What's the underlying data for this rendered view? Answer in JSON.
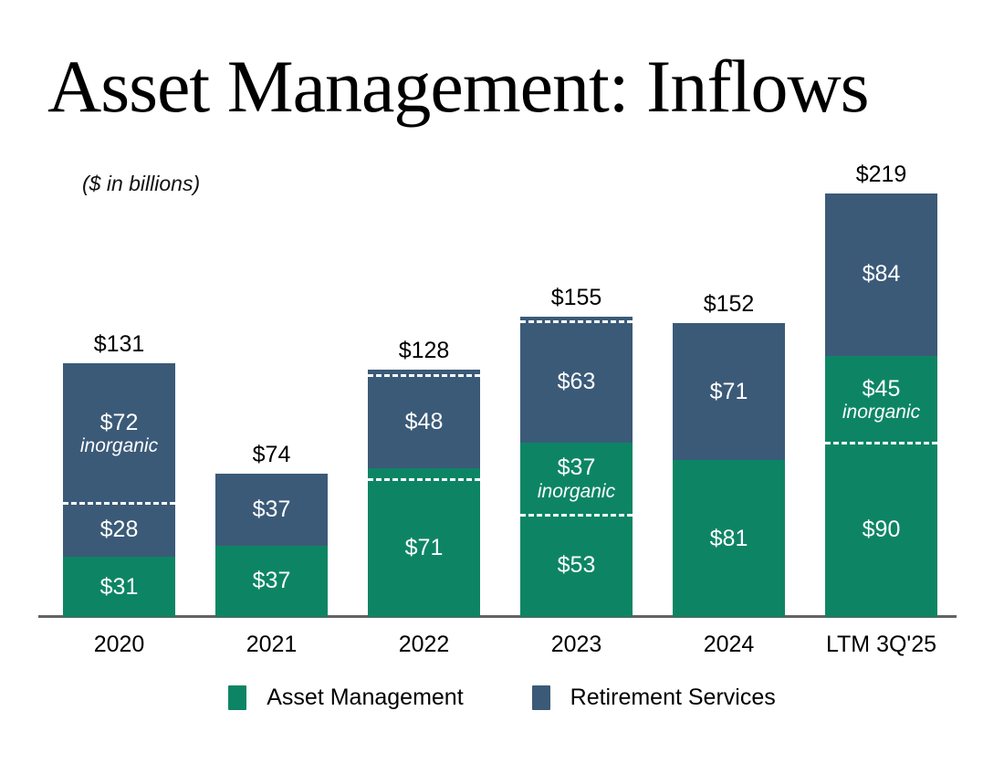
{
  "title": "Asset Management: Inflows",
  "subtitle": "($ in billions)",
  "colors": {
    "asset_management": "#0d8565",
    "retirement_services": "#3b5a78",
    "divider": "#ffffff",
    "axis_line": "#636363",
    "bar_text": "#ffffff",
    "label_text": "#000000"
  },
  "legend": [
    {
      "label": "Asset Management",
      "series": "asset_management"
    },
    {
      "label": "Retirement Services",
      "series": "retirement_services"
    }
  ],
  "chart_data": {
    "type": "bar",
    "stacked": true,
    "title": "Asset Management: Inflows",
    "subtitle": "($ in billions)",
    "unit": "$ in billions",
    "grid": false,
    "legend_position": "bottom",
    "ylim": [
      0,
      230
    ],
    "categories": [
      "2020",
      "2021",
      "2022",
      "2023",
      "2024",
      "LTM 3Q'25"
    ],
    "totals": [
      131,
      74,
      128,
      155,
      152,
      219
    ],
    "total_labels": [
      "$131",
      "$74",
      "$128",
      "$155",
      "$152",
      "$219"
    ],
    "series": [
      {
        "name": "Asset Management",
        "organic_values": [
          31,
          37,
          71,
          53,
          81,
          90
        ],
        "inorganic_values": [
          0,
          0,
          6,
          37,
          0,
          45
        ]
      },
      {
        "name": "Retirement Services",
        "organic_values": [
          28,
          37,
          48,
          63,
          71,
          84
        ],
        "inorganic_values": [
          72,
          0,
          3,
          2,
          0,
          0
        ]
      }
    ],
    "inorganic_annotation": "inorganic",
    "bars": [
      {
        "category": "2020",
        "total_label": "$131",
        "segments": [
          {
            "series": "asset_management",
            "value": 31,
            "label": "$31"
          },
          {
            "series": "retirement_services",
            "value": 28,
            "label": "$28"
          },
          {
            "series": "retirement_services",
            "value": 72,
            "label": "$72",
            "sublabel": "inorganic",
            "dashed_bottom": true
          }
        ]
      },
      {
        "category": "2021",
        "total_label": "$74",
        "segments": [
          {
            "series": "asset_management",
            "value": 37,
            "label": "$37"
          },
          {
            "series": "retirement_services",
            "value": 37,
            "label": "$37"
          }
        ]
      },
      {
        "category": "2022",
        "total_label": "$128",
        "segments": [
          {
            "series": "asset_management",
            "value": 71,
            "label": "$71"
          },
          {
            "series": "asset_management",
            "value": 6,
            "label": "",
            "dashed_bottom": true
          },
          {
            "series": "retirement_services",
            "value": 48,
            "label": "$48"
          },
          {
            "series": "retirement_services",
            "value": 3,
            "label": "",
            "dashed_bottom": true
          }
        ]
      },
      {
        "category": "2023",
        "total_label": "$155",
        "segments": [
          {
            "series": "asset_management",
            "value": 53,
            "label": "$53"
          },
          {
            "series": "asset_management",
            "value": 37,
            "label": "$37",
            "sublabel": "inorganic",
            "dashed_bottom": true
          },
          {
            "series": "retirement_services",
            "value": 63,
            "label": "$63"
          },
          {
            "series": "retirement_services",
            "value": 2,
            "label": "",
            "dashed_bottom": true
          }
        ]
      },
      {
        "category": "2024",
        "total_label": "$152",
        "segments": [
          {
            "series": "asset_management",
            "value": 81,
            "label": "$81"
          },
          {
            "series": "retirement_services",
            "value": 71,
            "label": "$71"
          }
        ]
      },
      {
        "category": "LTM 3Q'25",
        "total_label": "$219",
        "segments": [
          {
            "series": "asset_management",
            "value": 90,
            "label": "$90"
          },
          {
            "series": "asset_management",
            "value": 45,
            "label": "$45",
            "sublabel": "inorganic",
            "dashed_bottom": true
          },
          {
            "series": "retirement_services",
            "value": 84,
            "label": "$84"
          }
        ]
      }
    ]
  }
}
